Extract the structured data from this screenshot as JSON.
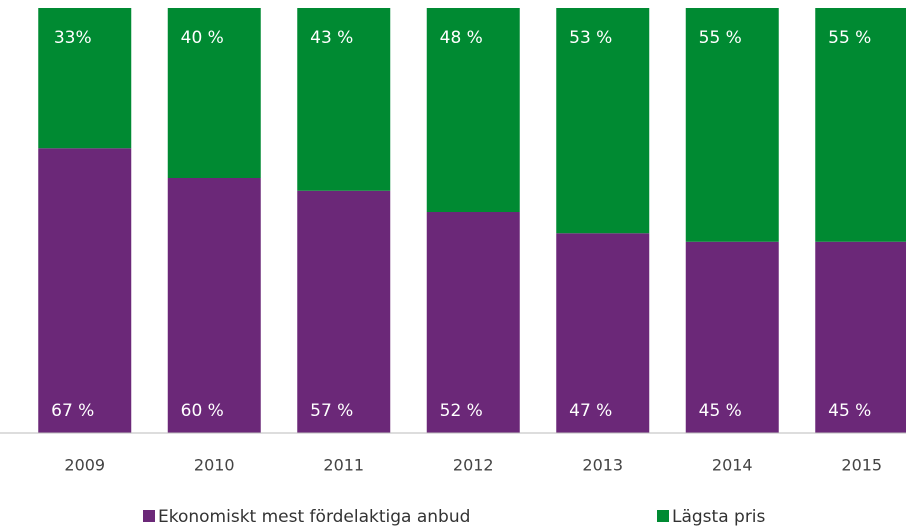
{
  "chart_data": {
    "type": "bar",
    "stacked": true,
    "categories": [
      "2009",
      "2010",
      "2011",
      "2012",
      "2013",
      "2014",
      "2015"
    ],
    "series": [
      {
        "name": "Ekonomiskt mest fördelaktiga anbud",
        "color": "#6b2878",
        "values": [
          67,
          60,
          57,
          52,
          47,
          45,
          45
        ],
        "value_labels": [
          "67 %",
          "60 %",
          "57 %",
          "52 %",
          "47 %",
          "45 %",
          "45 %"
        ]
      },
      {
        "name": "Lägsta pris",
        "color": "#008a32",
        "values": [
          33,
          40,
          43,
          48,
          53,
          55,
          55
        ],
        "value_labels": [
          "33%",
          "40 %",
          "43 %",
          "48 %",
          "53 %",
          "55 %",
          "55 %"
        ]
      }
    ],
    "ylim": [
      0,
      100
    ]
  }
}
